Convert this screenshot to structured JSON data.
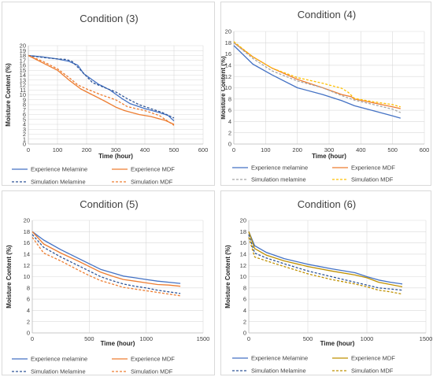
{
  "chart_data": [
    {
      "type": "line",
      "title": "Condition (3)",
      "xlabel": "Time (hour)",
      "ylabel": "Moisture Content (%)",
      "xlim": [
        0,
        600
      ],
      "ylim": [
        0,
        20
      ],
      "xticks": [
        0,
        100,
        200,
        300,
        400,
        500,
        600
      ],
      "yticks": [
        0,
        1,
        2,
        3,
        4,
        5,
        6,
        7,
        8,
        9,
        10,
        11,
        12,
        13,
        14,
        15,
        16,
        17,
        18,
        19,
        20
      ],
      "grid": true,
      "legend_position": "bottom",
      "series": [
        {
          "name": "Experience Melamine",
          "color": "#4472c4",
          "dash": "solid",
          "points": [
            [
              0,
              18
            ],
            [
              50,
              17.7
            ],
            [
              100,
              17.3
            ],
            [
              140,
              16.8
            ],
            [
              170,
              16
            ],
            [
              190,
              14.3
            ],
            [
              240,
              12.2
            ],
            [
              280,
              11
            ],
            [
              320,
              9.3
            ],
            [
              350,
              8.2
            ],
            [
              400,
              7.2
            ],
            [
              450,
              6.4
            ],
            [
              480,
              5.8
            ],
            [
              500,
              4.7
            ]
          ]
        },
        {
          "name": "Experience MDF",
          "color": "#ed7d31",
          "dash": "solid",
          "points": [
            [
              0,
              18
            ],
            [
              50,
              16.5
            ],
            [
              100,
              15
            ],
            [
              140,
              13
            ],
            [
              180,
              11.2
            ],
            [
              220,
              10
            ],
            [
              260,
              8.8
            ],
            [
              300,
              7.5
            ],
            [
              330,
              6.8
            ],
            [
              380,
              6
            ],
            [
              420,
              5.6
            ],
            [
              470,
              4.8
            ],
            [
              500,
              4
            ]
          ]
        },
        {
          "name": "Simulation Melamine",
          "color": "#2e5597",
          "dash": "dashed",
          "points": [
            [
              0,
              18
            ],
            [
              50,
              17.6
            ],
            [
              100,
              17.3
            ],
            [
              130,
              17.2
            ],
            [
              150,
              16.8
            ],
            [
              180,
              15
            ],
            [
              220,
              12.5
            ],
            [
              260,
              11.5
            ],
            [
              300,
              10.6
            ],
            [
              340,
              9.2
            ],
            [
              380,
              8
            ],
            [
              420,
              7.2
            ],
            [
              460,
              6.4
            ],
            [
              500,
              5.3
            ]
          ]
        },
        {
          "name": "Simulation MDF",
          "color": "#ed7d31",
          "dash": "dashed",
          "points": [
            [
              0,
              18
            ],
            [
              50,
              16.8
            ],
            [
              100,
              15.3
            ],
            [
              140,
              13.5
            ],
            [
              170,
              12
            ],
            [
              200,
              11.2
            ],
            [
              250,
              10
            ],
            [
              300,
              9
            ],
            [
              340,
              7.6
            ],
            [
              400,
              6.8
            ],
            [
              450,
              5.8
            ],
            [
              500,
              3.8
            ]
          ]
        }
      ]
    },
    {
      "type": "line",
      "title": "Condition (4)",
      "xlabel": "Time (hour)",
      "ylabel": "Moisture Content (%)",
      "xlim": [
        0,
        600
      ],
      "ylim": [
        0,
        20
      ],
      "xticks": [
        0,
        100,
        200,
        300,
        400,
        500,
        600
      ],
      "yticks": [
        0,
        2,
        4,
        6,
        8,
        10,
        12,
        14,
        16,
        18,
        20
      ],
      "grid": true,
      "legend_position": "bottom",
      "series": [
        {
          "name": "Experience melamine",
          "color": "#4472c4",
          "dash": "solid",
          "points": [
            [
              0,
              17.5
            ],
            [
              60,
              14.2
            ],
            [
              120,
              12.3
            ],
            [
              200,
              10
            ],
            [
              280,
              8.8
            ],
            [
              340,
              7.7
            ],
            [
              380,
              6.8
            ],
            [
              440,
              5.9
            ],
            [
              500,
              5
            ],
            [
              525,
              4.6
            ]
          ]
        },
        {
          "name": "Experience MDF",
          "color": "#ed7d31",
          "dash": "solid",
          "points": [
            [
              0,
              18
            ],
            [
              60,
              15.5
            ],
            [
              120,
              13.5
            ],
            [
              200,
              11.5
            ],
            [
              280,
              10
            ],
            [
              340,
              8.8
            ],
            [
              370,
              8.4
            ],
            [
              380,
              8
            ],
            [
              440,
              7.3
            ],
            [
              500,
              6.6
            ],
            [
              525,
              6.3
            ]
          ]
        },
        {
          "name": "Simulation melamine",
          "color": "#a5a5a5",
          "dash": "dashed",
          "points": [
            [
              0,
              18
            ],
            [
              60,
              15.2
            ],
            [
              120,
              13
            ],
            [
              200,
              11.2
            ],
            [
              280,
              10
            ],
            [
              340,
              8.6
            ],
            [
              380,
              7.8
            ],
            [
              440,
              7
            ],
            [
              500,
              6.2
            ],
            [
              525,
              5.6
            ]
          ]
        },
        {
          "name": "Simulation MDF",
          "color": "#ffc000",
          "dash": "dashed",
          "points": [
            [
              0,
              18.2
            ],
            [
              60,
              15.5
            ],
            [
              120,
              13.5
            ],
            [
              200,
              11.8
            ],
            [
              280,
              10.8
            ],
            [
              340,
              9.9
            ],
            [
              360,
              9.2
            ],
            [
              380,
              8.1
            ],
            [
              440,
              7.5
            ],
            [
              500,
              7
            ],
            [
              525,
              6.6
            ]
          ]
        }
      ]
    },
    {
      "type": "line",
      "title": "Condition (5)",
      "xlabel": "Time (hour)",
      "ylabel": "Moisture Content (%)",
      "xlim": [
        0,
        1500
      ],
      "ylim": [
        0,
        20
      ],
      "xticks": [
        0,
        500,
        1000,
        1500
      ],
      "yticks": [
        0,
        2,
        4,
        6,
        8,
        10,
        12,
        14,
        16,
        18,
        20
      ],
      "grid": true,
      "legend_position": "bottom",
      "series": [
        {
          "name": "Experience melamine",
          "color": "#4472c4",
          "dash": "solid",
          "points": [
            [
              0,
              18
            ],
            [
              100,
              16.5
            ],
            [
              250,
              14.8
            ],
            [
              400,
              13.3
            ],
            [
              500,
              12.3
            ],
            [
              600,
              11.3
            ],
            [
              700,
              10.7
            ],
            [
              800,
              10.1
            ],
            [
              900,
              9.8
            ],
            [
              1000,
              9.5
            ],
            [
              1100,
              9.2
            ],
            [
              1200,
              9
            ],
            [
              1300,
              8.8
            ]
          ]
        },
        {
          "name": "Experience MDF",
          "color": "#ed7d31",
          "dash": "solid",
          "points": [
            [
              0,
              18
            ],
            [
              100,
              15.8
            ],
            [
              250,
              14.2
            ],
            [
              400,
              12.8
            ],
            [
              500,
              11.8
            ],
            [
              600,
              10.8
            ],
            [
              700,
              10.1
            ],
            [
              800,
              9.5
            ],
            [
              900,
              9.2
            ],
            [
              1000,
              8.9
            ],
            [
              1100,
              8.6
            ],
            [
              1200,
              8.5
            ],
            [
              1300,
              8.3
            ]
          ]
        },
        {
          "name": "Simulation Melamine",
          "color": "#2e5597",
          "dash": "dashed",
          "points": [
            [
              0,
              17.5
            ],
            [
              100,
              15.2
            ],
            [
              250,
              13.5
            ],
            [
              400,
              12
            ],
            [
              500,
              11
            ],
            [
              600,
              10
            ],
            [
              700,
              9.3
            ],
            [
              800,
              8.7
            ],
            [
              900,
              8.3
            ],
            [
              1000,
              8
            ],
            [
              1100,
              7.6
            ],
            [
              1200,
              7.3
            ],
            [
              1300,
              7
            ]
          ]
        },
        {
          "name": "Simulation MDF",
          "color": "#ed7d31",
          "dash": "dashed",
          "points": [
            [
              0,
              17
            ],
            [
              100,
              14.2
            ],
            [
              250,
              12.8
            ],
            [
              400,
              11.2
            ],
            [
              500,
              10.2
            ],
            [
              600,
              9.3
            ],
            [
              700,
              8.7
            ],
            [
              800,
              8.1
            ],
            [
              900,
              7.8
            ],
            [
              1000,
              7.5
            ],
            [
              1100,
              7.2
            ],
            [
              1200,
              6.9
            ],
            [
              1300,
              6.6
            ]
          ]
        }
      ]
    },
    {
      "type": "line",
      "title": "Condition (6)",
      "xlabel": "Time (hour)",
      "ylabel": "Moisture Content (%)",
      "xlim": [
        0,
        1500
      ],
      "ylim": [
        0,
        20
      ],
      "xticks": [
        0,
        500,
        1000,
        1500
      ],
      "yticks": [
        0,
        2,
        4,
        6,
        8,
        10,
        12,
        14,
        16,
        18,
        20
      ],
      "grid": true,
      "legend_position": "bottom",
      "series": [
        {
          "name": "Experience Melamine",
          "color": "#4472c4",
          "dash": "solid",
          "points": [
            [
              0,
              18
            ],
            [
              50,
              15.5
            ],
            [
              150,
              14.3
            ],
            [
              300,
              13.2
            ],
            [
              500,
              12.2
            ],
            [
              700,
              11.4
            ],
            [
              900,
              10.7
            ],
            [
              1000,
              10
            ],
            [
              1100,
              9.4
            ],
            [
              1200,
              9
            ],
            [
              1300,
              8.7
            ]
          ]
        },
        {
          "name": "Experience MDF",
          "color": "#bf9000",
          "dash": "solid",
          "points": [
            [
              0,
              18
            ],
            [
              50,
              15
            ],
            [
              150,
              13.8
            ],
            [
              300,
              12.8
            ],
            [
              500,
              11.8
            ],
            [
              700,
              11
            ],
            [
              900,
              10.3
            ],
            [
              1000,
              9.8
            ],
            [
              1100,
              9
            ],
            [
              1200,
              8.6
            ],
            [
              1300,
              8.2
            ]
          ]
        },
        {
          "name": "Simulation Melamine",
          "color": "#2e5597",
          "dash": "dashed",
          "points": [
            [
              0,
              17.5
            ],
            [
              50,
              14.2
            ],
            [
              150,
              13.3
            ],
            [
              300,
              12.3
            ],
            [
              500,
              11
            ],
            [
              700,
              10
            ],
            [
              900,
              9
            ],
            [
              1000,
              8.5
            ],
            [
              1100,
              8
            ],
            [
              1200,
              7.8
            ],
            [
              1300,
              7.6
            ]
          ]
        },
        {
          "name": "Simulation MDF",
          "color": "#bf9000",
          "dash": "dashed",
          "points": [
            [
              0,
              17
            ],
            [
              50,
              13.5
            ],
            [
              150,
              12.8
            ],
            [
              300,
              11.8
            ],
            [
              500,
              10.5
            ],
            [
              700,
              9.5
            ],
            [
              900,
              8.7
            ],
            [
              1000,
              8.2
            ],
            [
              1100,
              7.6
            ],
            [
              1200,
              7.3
            ],
            [
              1300,
              6.9
            ]
          ]
        }
      ]
    }
  ]
}
